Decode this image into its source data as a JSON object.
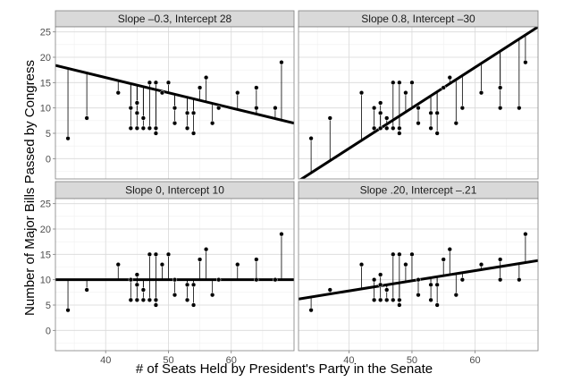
{
  "chart_data": {
    "type": "scatter",
    "xlabel": "# of Seats Held by President's Party in the Senate",
    "ylabel": "Number of Major Bills Passed by Congress",
    "xlim": [
      32,
      70
    ],
    "ylim": [
      -4,
      26
    ],
    "x_ticks": [
      40,
      50,
      60
    ],
    "y_ticks": [
      0,
      5,
      10,
      15,
      20,
      25
    ],
    "grid": true,
    "points": [
      {
        "x": 34,
        "y": 4
      },
      {
        "x": 37,
        "y": 8
      },
      {
        "x": 42,
        "y": 13
      },
      {
        "x": 44,
        "y": 10
      },
      {
        "x": 44,
        "y": 6
      },
      {
        "x": 45,
        "y": 6
      },
      {
        "x": 45,
        "y": 9
      },
      {
        "x": 45,
        "y": 11
      },
      {
        "x": 46,
        "y": 6
      },
      {
        "x": 46,
        "y": 8
      },
      {
        "x": 47,
        "y": 6
      },
      {
        "x": 47,
        "y": 15
      },
      {
        "x": 48,
        "y": 15
      },
      {
        "x": 48,
        "y": 6
      },
      {
        "x": 48,
        "y": 5
      },
      {
        "x": 49,
        "y": 13
      },
      {
        "x": 50,
        "y": 15
      },
      {
        "x": 51,
        "y": 7
      },
      {
        "x": 51,
        "y": 10
      },
      {
        "x": 53,
        "y": 9
      },
      {
        "x": 53,
        "y": 6
      },
      {
        "x": 54,
        "y": 5
      },
      {
        "x": 54,
        "y": 9
      },
      {
        "x": 55,
        "y": 14
      },
      {
        "x": 56,
        "y": 16
      },
      {
        "x": 57,
        "y": 7
      },
      {
        "x": 58,
        "y": 10
      },
      {
        "x": 61,
        "y": 13
      },
      {
        "x": 64,
        "y": 14
      },
      {
        "x": 64,
        "y": 10
      },
      {
        "x": 67,
        "y": 10
      },
      {
        "x": 68,
        "y": 19
      }
    ],
    "panels": [
      {
        "title": "Slope –0.3, Intercept 28",
        "slope": -0.3,
        "intercept": 28
      },
      {
        "title": "Slope 0.8, Intercept –30",
        "slope": 0.8,
        "intercept": -30
      },
      {
        "title": "Slope 0, Intercept 10",
        "slope": 0,
        "intercept": 10
      },
      {
        "title": "Slope .20, Intercept –.21",
        "slope": 0.2,
        "intercept": -0.21
      }
    ]
  }
}
